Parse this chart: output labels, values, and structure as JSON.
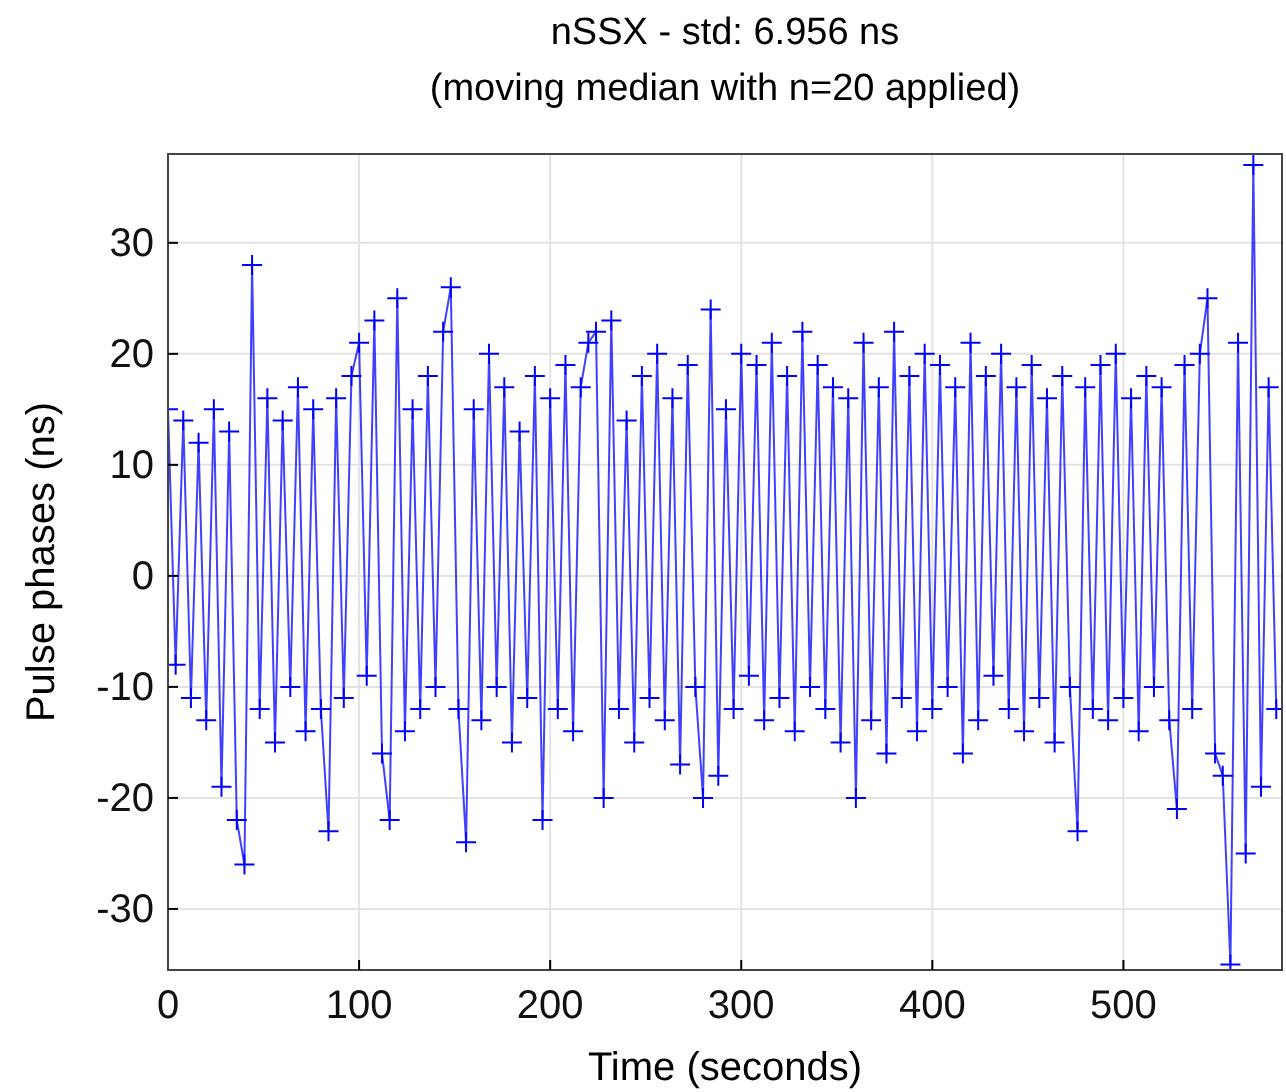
{
  "chart_data": {
    "type": "line",
    "title": "nSSX - std: 6.956 ns",
    "subtitle": "(moving median with n=20 applied)",
    "xlabel": "Time (seconds)",
    "ylabel": "Pulse phases (ns)",
    "xlim": [
      0,
      583
    ],
    "xticks": [
      0,
      100,
      200,
      300,
      400,
      500
    ],
    "ylim": [
      -35.5,
      38
    ],
    "yticks": [
      -30,
      -20,
      -10,
      0,
      10,
      20,
      30
    ],
    "grid": true,
    "marker": "cross",
    "line_style": "solid",
    "x": [
      0,
      4,
      8,
      12,
      16,
      20,
      24,
      28,
      32,
      36,
      40,
      44,
      48,
      52,
      56,
      60,
      64,
      68,
      72,
      76,
      80,
      84,
      88,
      92,
      96,
      100,
      104,
      108,
      112,
      116,
      120,
      124,
      128,
      132,
      136,
      140,
      144,
      148,
      152,
      156,
      160,
      164,
      168,
      172,
      176,
      180,
      184,
      188,
      192,
      196,
      200,
      204,
      208,
      212,
      216,
      220,
      224,
      228,
      232,
      236,
      240,
      244,
      248,
      252,
      256,
      260,
      264,
      268,
      272,
      276,
      280,
      284,
      288,
      292,
      296,
      300,
      304,
      308,
      312,
      316,
      320,
      324,
      328,
      332,
      336,
      340,
      344,
      348,
      352,
      356,
      360,
      364,
      368,
      372,
      376,
      380,
      384,
      388,
      392,
      396,
      400,
      404,
      408,
      412,
      416,
      420,
      424,
      428,
      432,
      436,
      440,
      444,
      448,
      452,
      456,
      460,
      464,
      468,
      472,
      476,
      480,
      484,
      488,
      492,
      496,
      500,
      504,
      508,
      512,
      516,
      520,
      524,
      528,
      532,
      536,
      540,
      544,
      548,
      552,
      556,
      560,
      564,
      568,
      572,
      576,
      580
    ],
    "series": [
      {
        "color": "#0000ff",
        "values": [
          15,
          -8,
          14,
          -11,
          12,
          -13,
          15,
          -19,
          13,
          -22,
          -26,
          28,
          -12,
          16,
          -15,
          14,
          -10,
          17,
          -14,
          15,
          -12,
          -23,
          16,
          -11,
          18,
          21,
          -9,
          23,
          -16,
          -22,
          25,
          -14,
          15,
          -12,
          18,
          -10,
          22,
          26,
          -12,
          -24,
          15,
          -13,
          20,
          -10,
          17,
          -15,
          13,
          -11,
          18,
          -22,
          16,
          -12,
          19,
          -14,
          17,
          21,
          22,
          -20,
          23,
          -12,
          14,
          -15,
          18,
          -11,
          20,
          -13,
          16,
          -17,
          19,
          -10,
          -20,
          24,
          -18,
          15,
          -12,
          20,
          -9,
          19,
          -13,
          21,
          -11,
          18,
          -14,
          22,
          -10,
          19,
          -12,
          17,
          -15,
          16,
          -20,
          21,
          -13,
          17,
          -16,
          22,
          -11,
          18,
          -14,
          20,
          -12,
          19,
          -10,
          17,
          -16,
          21,
          -13,
          18,
          -9,
          20,
          -12,
          17,
          -14,
          19,
          -11,
          16,
          -15,
          18,
          -10,
          -23,
          17,
          -12,
          19,
          -13,
          20,
          -11,
          16,
          -14,
          18,
          -10,
          17,
          -13,
          -21,
          19,
          -12,
          20,
          25,
          -16,
          -18,
          -35,
          21,
          -25,
          37,
          -19,
          17,
          -12
        ]
      }
    ]
  }
}
